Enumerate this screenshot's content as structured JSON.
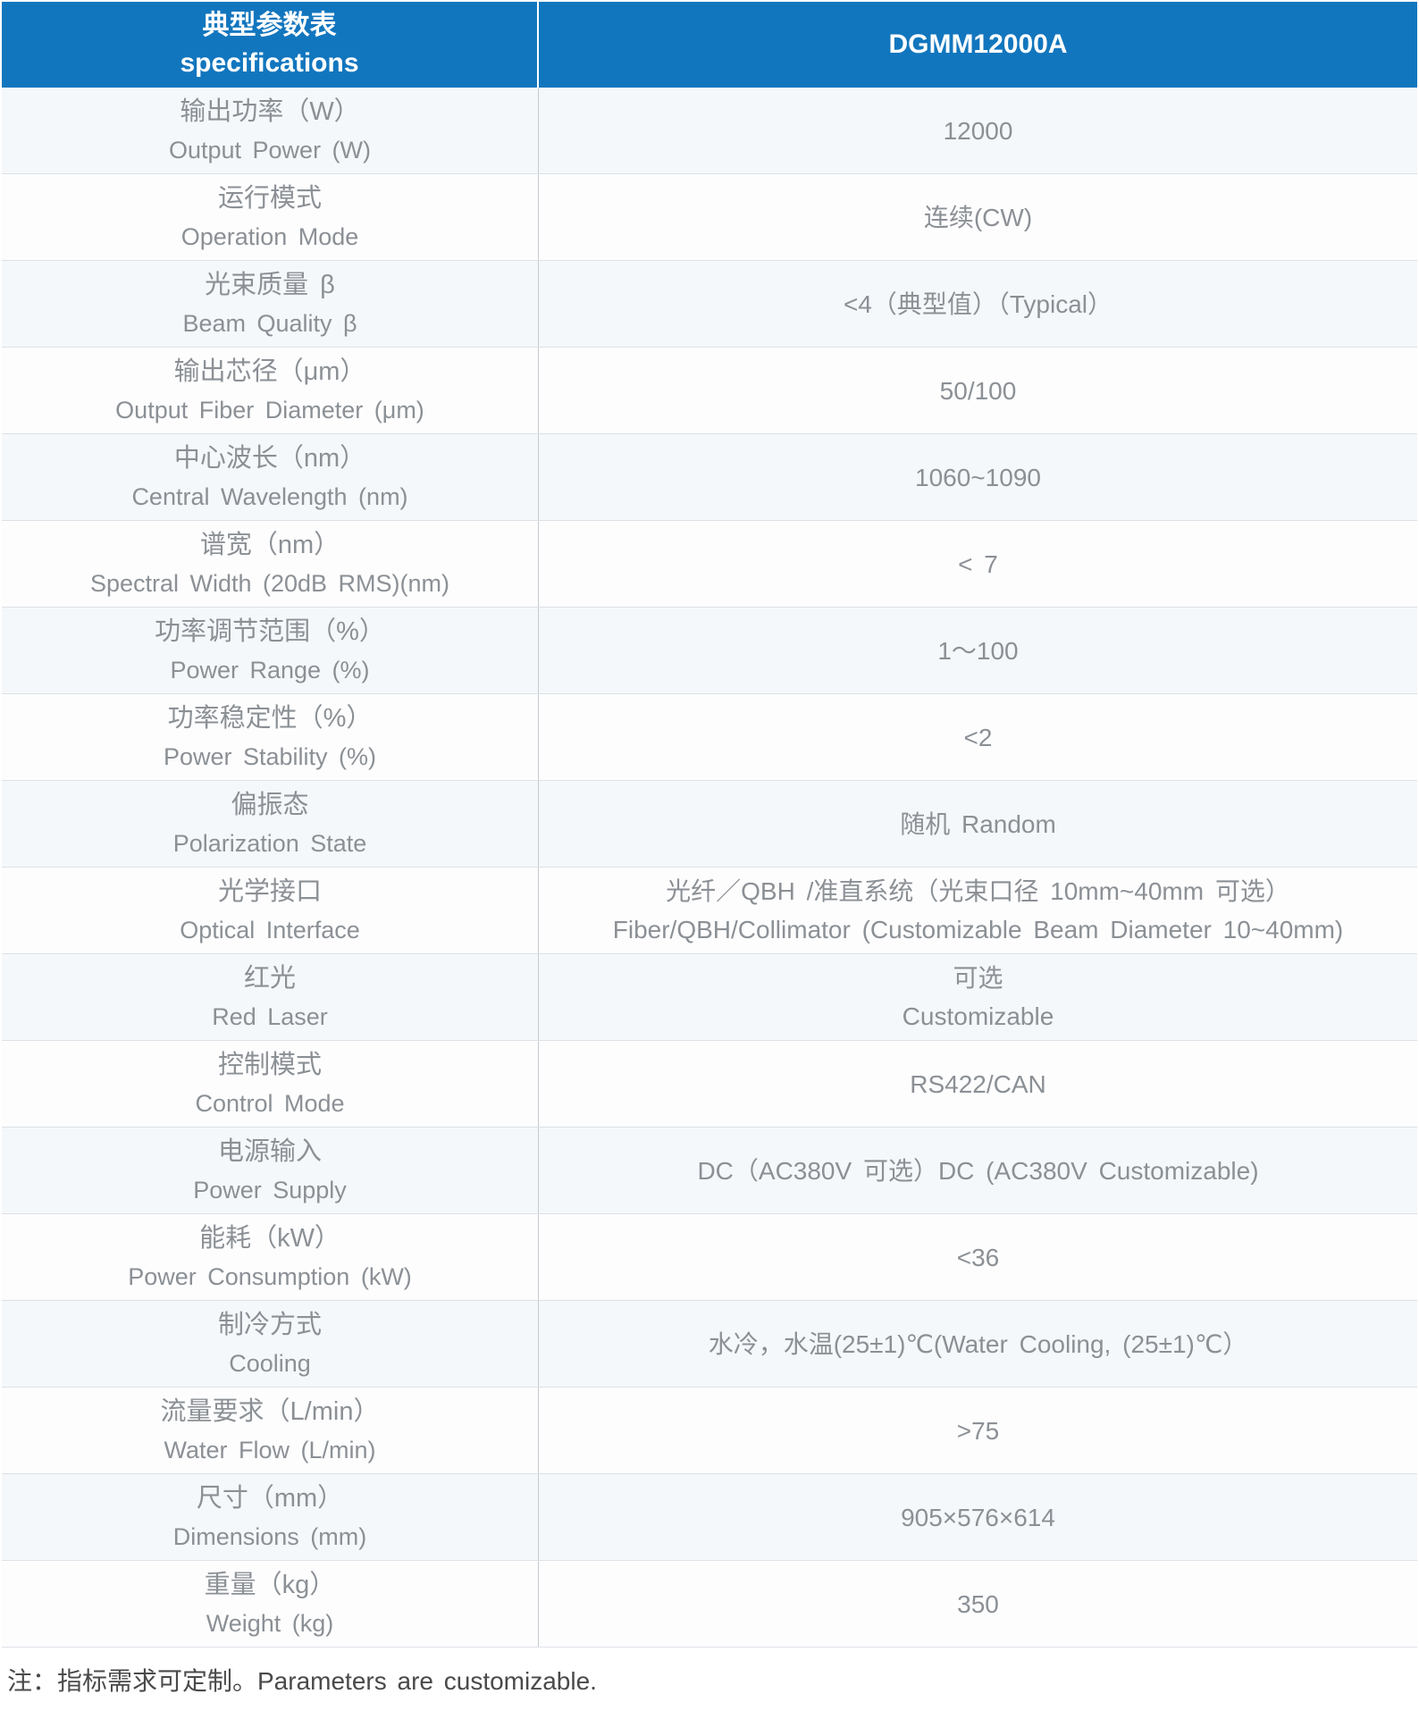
{
  "table": {
    "header": {
      "title_zh": "典型参数表",
      "title_en": "specifications",
      "model": "DGMM12000A"
    },
    "rows": [
      {
        "label_zh": "输出功率（W）",
        "label_en": "Output Power (W)",
        "value_lines": [
          "12000"
        ]
      },
      {
        "label_zh": "运行模式",
        "label_en": "Operation Mode",
        "value_lines": [
          "连续(CW)"
        ]
      },
      {
        "label_zh": "光束质量 β",
        "label_en": "Beam Quality β",
        "value_lines": [
          "<4（典型值）（Typical）"
        ]
      },
      {
        "label_zh": "输出芯径（μm）",
        "label_en": "Output Fiber Diameter (μm)",
        "value_lines": [
          "50/100"
        ]
      },
      {
        "label_zh": "中心波长（nm）",
        "label_en": "Central Wavelength (nm)",
        "value_lines": [
          "1060~1090"
        ]
      },
      {
        "label_zh": "谱宽（nm）",
        "label_en": "Spectral Width (20dB RMS)(nm)",
        "value_lines": [
          "< 7"
        ]
      },
      {
        "label_zh": "功率调节范围（%）",
        "label_en": "Power Range (%)",
        "value_lines": [
          "1～100"
        ]
      },
      {
        "label_zh": "功率稳定性（%）",
        "label_en": "Power Stability (%)",
        "value_lines": [
          "<2"
        ]
      },
      {
        "label_zh": "偏振态",
        "label_en": "Polarization State",
        "value_lines": [
          "随机 Random"
        ]
      },
      {
        "label_zh": "光学接口",
        "label_en": "Optical Interface",
        "value_lines": [
          "光纤／QBH /准直系统（光束口径 10mm~40mm 可选）",
          "Fiber/QBH/Collimator (Customizable Beam Diameter 10~40mm)"
        ]
      },
      {
        "label_zh": "红光",
        "label_en": "Red Laser",
        "value_lines": [
          "可选",
          "Customizable"
        ]
      },
      {
        "label_zh": "控制模式",
        "label_en": "Control Mode",
        "value_lines": [
          "RS422/CAN"
        ]
      },
      {
        "label_zh": "电源输入",
        "label_en": "Power Supply",
        "value_lines": [
          "DC（AC380V 可选）DC (AC380V Customizable)"
        ]
      },
      {
        "label_zh": "能耗（kW）",
        "label_en": "Power Consumption (kW)",
        "value_lines": [
          "<36"
        ]
      },
      {
        "label_zh": "制冷方式",
        "label_en": "Cooling",
        "value_lines": [
          "水冷，水温(25±1)℃(Water Cooling, (25±1)℃）"
        ]
      },
      {
        "label_zh": "流量要求（L/min）",
        "label_en": "Water Flow (L/min)",
        "value_lines": [
          ">75"
        ]
      },
      {
        "label_zh": "尺寸（mm）",
        "label_en": "Dimensions (mm)",
        "value_lines": [
          "905×576×614"
        ]
      },
      {
        "label_zh": "重量（kg）",
        "label_en": "Weight (kg)",
        "value_lines": [
          "350"
        ]
      }
    ],
    "footnote": "注：指标需求可定制。Parameters are customizable.",
    "colors": {
      "header_bg": "#1276BE",
      "header_text": "#FFFFFF",
      "row_alt_bg": "#F4F8FB",
      "row_bg": "#FDFDFE",
      "cell_text": "#8B9095",
      "grid_line": "#DDE1E5",
      "footnote_text": "#4A4A4A"
    }
  }
}
